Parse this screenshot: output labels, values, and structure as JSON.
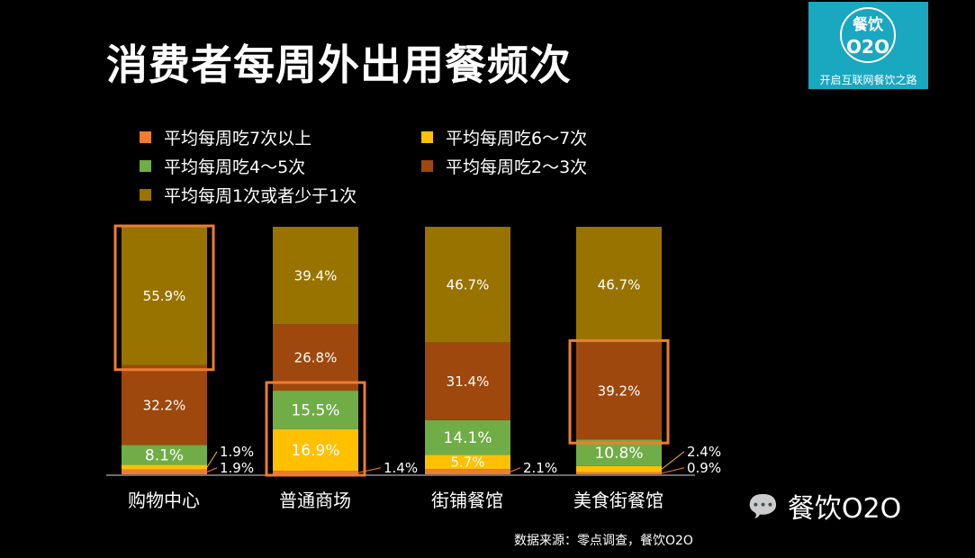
{
  "title": "消费者每周外出用餐频次",
  "logo": {
    "line1": "餐饮",
    "line2": "O2O",
    "tagline": "开启互联网餐饮之路"
  },
  "source": "数据来源：零点调查，餐饮O2O",
  "watermark": "餐饮O2O",
  "chart_data": {
    "type": "bar",
    "stacked": true,
    "title": "消费者每周外出用餐频次",
    "categories": [
      "购物中心",
      "普通商场",
      "街铺餐馆",
      "美食街餐馆"
    ],
    "series": [
      {
        "name": "平均每周吃7次以上",
        "color": "#ed7d31",
        "values": [
          1.9,
          1.4,
          2.1,
          0.9
        ],
        "labels": [
          "1.9%",
          "1.4%",
          "2.1%",
          "0.9%"
        ]
      },
      {
        "name": "平均每周吃6～7次",
        "color": "#ffc000",
        "values": [
          1.9,
          16.9,
          5.7,
          2.4
        ],
        "labels": [
          "1.9%",
          "16.9%",
          "5.7%",
          "2.4%"
        ]
      },
      {
        "name": "平均每周吃4～5次",
        "color": "#70ad47",
        "values": [
          8.1,
          15.5,
          14.1,
          10.8
        ],
        "labels": [
          "8.1%",
          "15.5%",
          "14.1%",
          "10.8%"
        ]
      },
      {
        "name": "平均每周吃2～3次",
        "color": "#9e480e",
        "values": [
          32.2,
          26.8,
          31.4,
          39.2
        ],
        "labels": [
          "32.2%",
          "26.8%",
          "31.4%",
          "39.2%"
        ]
      },
      {
        "name": "平均每周1次或者少于1次",
        "color": "#997300",
        "values": [
          55.9,
          39.4,
          46.7,
          46.7
        ],
        "labels": [
          "55.9%",
          "39.4%",
          "46.7%",
          "46.7%"
        ]
      }
    ],
    "ylim": [
      0,
      100
    ],
    "legend": "top",
    "highlights": [
      {
        "category": "购物中心",
        "series": "平均每周1次或者少于1次"
      },
      {
        "category": "普通商场",
        "series": "平均每周吃6～7次 + 平均每周吃4～5次"
      },
      {
        "category": "美食街餐馆",
        "series": "平均每周吃2～3次"
      }
    ],
    "highlight_color": "#ed7d31"
  }
}
